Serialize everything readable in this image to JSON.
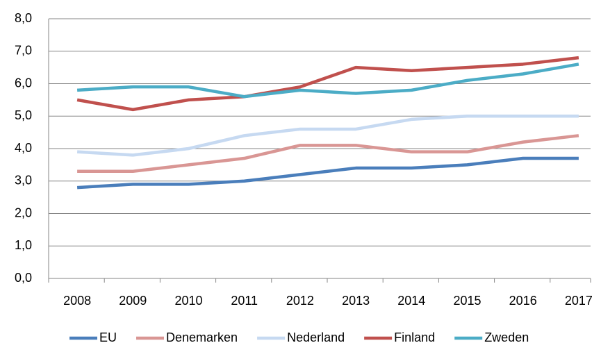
{
  "chart_data": {
    "type": "line",
    "categories": [
      "2008",
      "2009",
      "2010",
      "2011",
      "2012",
      "2013",
      "2014",
      "2015",
      "2016",
      "2017"
    ],
    "series": [
      {
        "name": "EU",
        "color": "#4a7ebb",
        "values": [
          2.8,
          2.9,
          2.9,
          3.0,
          3.2,
          3.4,
          3.4,
          3.5,
          3.7,
          3.7
        ]
      },
      {
        "name": "Denemarken",
        "color": "#d99694",
        "values": [
          3.3,
          3.3,
          3.5,
          3.7,
          4.1,
          4.1,
          3.9,
          3.9,
          4.2,
          4.4
        ]
      },
      {
        "name": "Nederland",
        "color": "#c6d9f1",
        "values": [
          3.9,
          3.8,
          4.0,
          4.4,
          4.6,
          4.6,
          4.9,
          5.0,
          5.0,
          5.0
        ]
      },
      {
        "name": "Finland",
        "color": "#c0504d",
        "values": [
          5.5,
          5.2,
          5.5,
          5.6,
          5.9,
          6.5,
          6.4,
          6.5,
          6.6,
          6.8
        ]
      },
      {
        "name": "Zweden",
        "color": "#4bacc6",
        "values": [
          5.8,
          5.9,
          5.9,
          5.6,
          5.8,
          5.7,
          5.8,
          6.1,
          6.3,
          6.6
        ]
      }
    ],
    "ylim": [
      0,
      8
    ],
    "yticks": [
      {
        "value": 0,
        "label": "0,0"
      },
      {
        "value": 1,
        "label": "1,0"
      },
      {
        "value": 2,
        "label": "2,0"
      },
      {
        "value": 3,
        "label": "3,0"
      },
      {
        "value": 4,
        "label": "4,0"
      },
      {
        "value": 5,
        "label": "5,0"
      },
      {
        "value": 6,
        "label": "6,0"
      },
      {
        "value": 7,
        "label": "7,0"
      },
      {
        "value": 8,
        "label": "8,0"
      }
    ],
    "grid": true,
    "legend": "bottom"
  }
}
